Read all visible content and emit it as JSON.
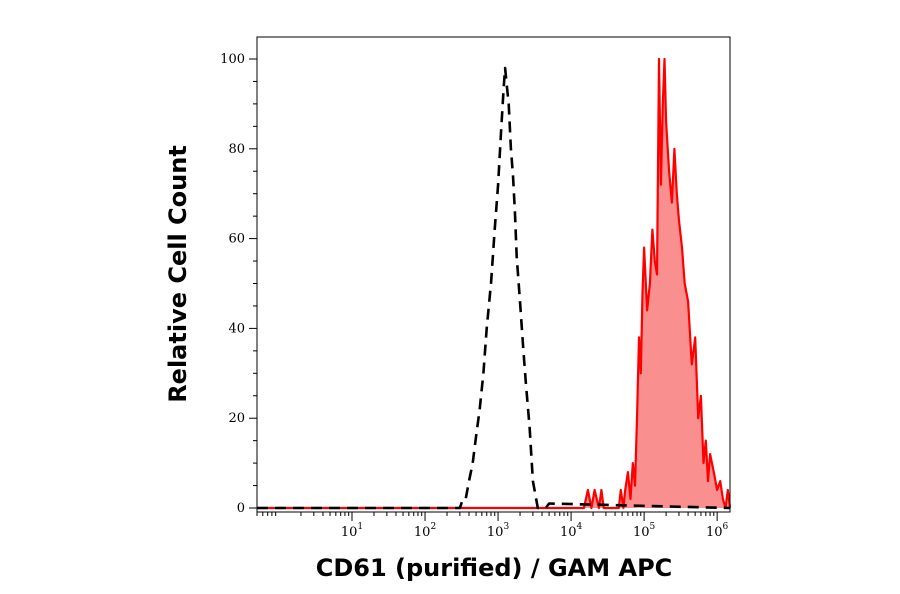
{
  "chart_data": {
    "type": "area",
    "xlabel": "CD61 (purified) / GAM APC",
    "ylabel": "Relative Cell Count",
    "x_scale": "log",
    "xlim": [
      0.5,
      1500000
    ],
    "ylim": [
      0,
      100
    ],
    "x_ticks": [
      {
        "base": "10",
        "exp": "1",
        "value": 10
      },
      {
        "base": "10",
        "exp": "2",
        "value": 100
      },
      {
        "base": "10",
        "exp": "3",
        "value": 1000
      },
      {
        "base": "10",
        "exp": "4",
        "value": 10000
      },
      {
        "base": "10",
        "exp": "5",
        "value": 100000
      },
      {
        "base": "10",
        "exp": "6",
        "value": 1000000
      }
    ],
    "y_ticks": [
      "0",
      "20",
      "40",
      "60",
      "80",
      "100"
    ],
    "grid": false,
    "series": [
      {
        "style": "dashed",
        "color": "#000000",
        "fill": "none",
        "x": [
          0.5,
          300,
          330,
          360,
          400,
          450,
          500,
          560,
          630,
          700,
          800,
          900,
          1000,
          1100,
          1200,
          1250,
          1300,
          1400,
          1500,
          1600,
          1700,
          1800,
          2000,
          2200,
          2400,
          2700,
          3000,
          3500,
          4500,
          5000,
          1500000
        ],
        "y": [
          0,
          0,
          2,
          2,
          6,
          10,
          16,
          22,
          30,
          40,
          50,
          62,
          72,
          84,
          94,
          98,
          95,
          90,
          80,
          74,
          66,
          56,
          46,
          36,
          28,
          18,
          6,
          0,
          0,
          1,
          0
        ]
      },
      {
        "style": "solid",
        "color": "#ff0000",
        "fill": "#f98f8f",
        "x": [
          0.5,
          15000,
          17000,
          19000,
          21000,
          24000,
          26000,
          28000,
          45000,
          48000,
          52000,
          55000,
          60000,
          65000,
          70000,
          75000,
          80000,
          85000,
          90000,
          95000,
          100000,
          110000,
          120000,
          130000,
          140000,
          150000,
          160000,
          170000,
          180000,
          190000,
          200000,
          220000,
          240000,
          260000,
          280000,
          300000,
          330000,
          360000,
          400000,
          450000,
          500000,
          550000,
          600000,
          650000,
          700000,
          750000,
          800000,
          900000,
          1000000,
          1100000,
          1200000,
          1300000,
          1400000,
          1500000
        ],
        "y": [
          0,
          0,
          4,
          0,
          4,
          0,
          4,
          0,
          0,
          4,
          0,
          4,
          8,
          2,
          10,
          5,
          20,
          38,
          30,
          48,
          58,
          44,
          50,
          62,
          55,
          52,
          100,
          72,
          90,
          100,
          86,
          75,
          68,
          80,
          70,
          64,
          58,
          50,
          46,
          32,
          38,
          20,
          25,
          10,
          15,
          6,
          12,
          8,
          4,
          6,
          2,
          0,
          4,
          0
        ]
      }
    ]
  }
}
